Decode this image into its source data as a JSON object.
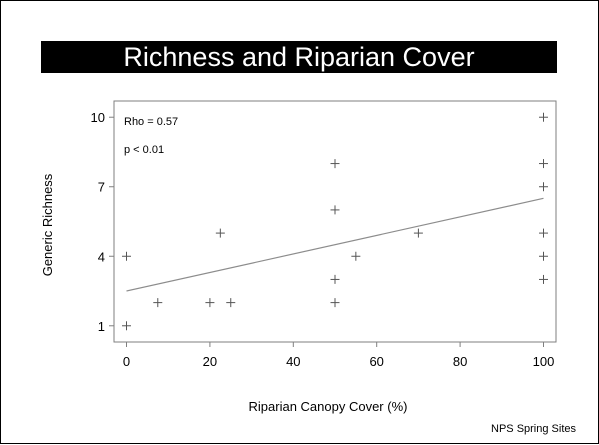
{
  "slide": {
    "title": "Richness and Riparian Cover",
    "footer": "NPS Spring Sites"
  },
  "chart_data": {
    "type": "scatter",
    "title": "",
    "xlabel": "Riparian Canopy Cover (%)",
    "ylabel": "Generic Richness",
    "xlim": [
      -3,
      103
    ],
    "ylim": [
      0.3,
      10.7
    ],
    "xticks": [
      0,
      20,
      40,
      60,
      80,
      100
    ],
    "yticks": [
      1,
      4,
      7,
      10
    ],
    "grid": false,
    "annotations": [
      "Rho = 0.57",
      "p < 0.01"
    ],
    "points": [
      {
        "x": 0,
        "y": 1
      },
      {
        "x": 0,
        "y": 4
      },
      {
        "x": 7.5,
        "y": 2
      },
      {
        "x": 20,
        "y": 2
      },
      {
        "x": 22.5,
        "y": 5
      },
      {
        "x": 25,
        "y": 2
      },
      {
        "x": 50,
        "y": 8
      },
      {
        "x": 50,
        "y": 6
      },
      {
        "x": 50,
        "y": 3
      },
      {
        "x": 50,
        "y": 2
      },
      {
        "x": 55,
        "y": 4
      },
      {
        "x": 70,
        "y": 5
      },
      {
        "x": 100,
        "y": 10
      },
      {
        "x": 100,
        "y": 8
      },
      {
        "x": 100,
        "y": 7
      },
      {
        "x": 100,
        "y": 5
      },
      {
        "x": 100,
        "y": 4
      },
      {
        "x": 100,
        "y": 3
      }
    ],
    "regression_line": {
      "x": [
        0,
        100
      ],
      "y": [
        2.5,
        6.5
      ]
    }
  }
}
